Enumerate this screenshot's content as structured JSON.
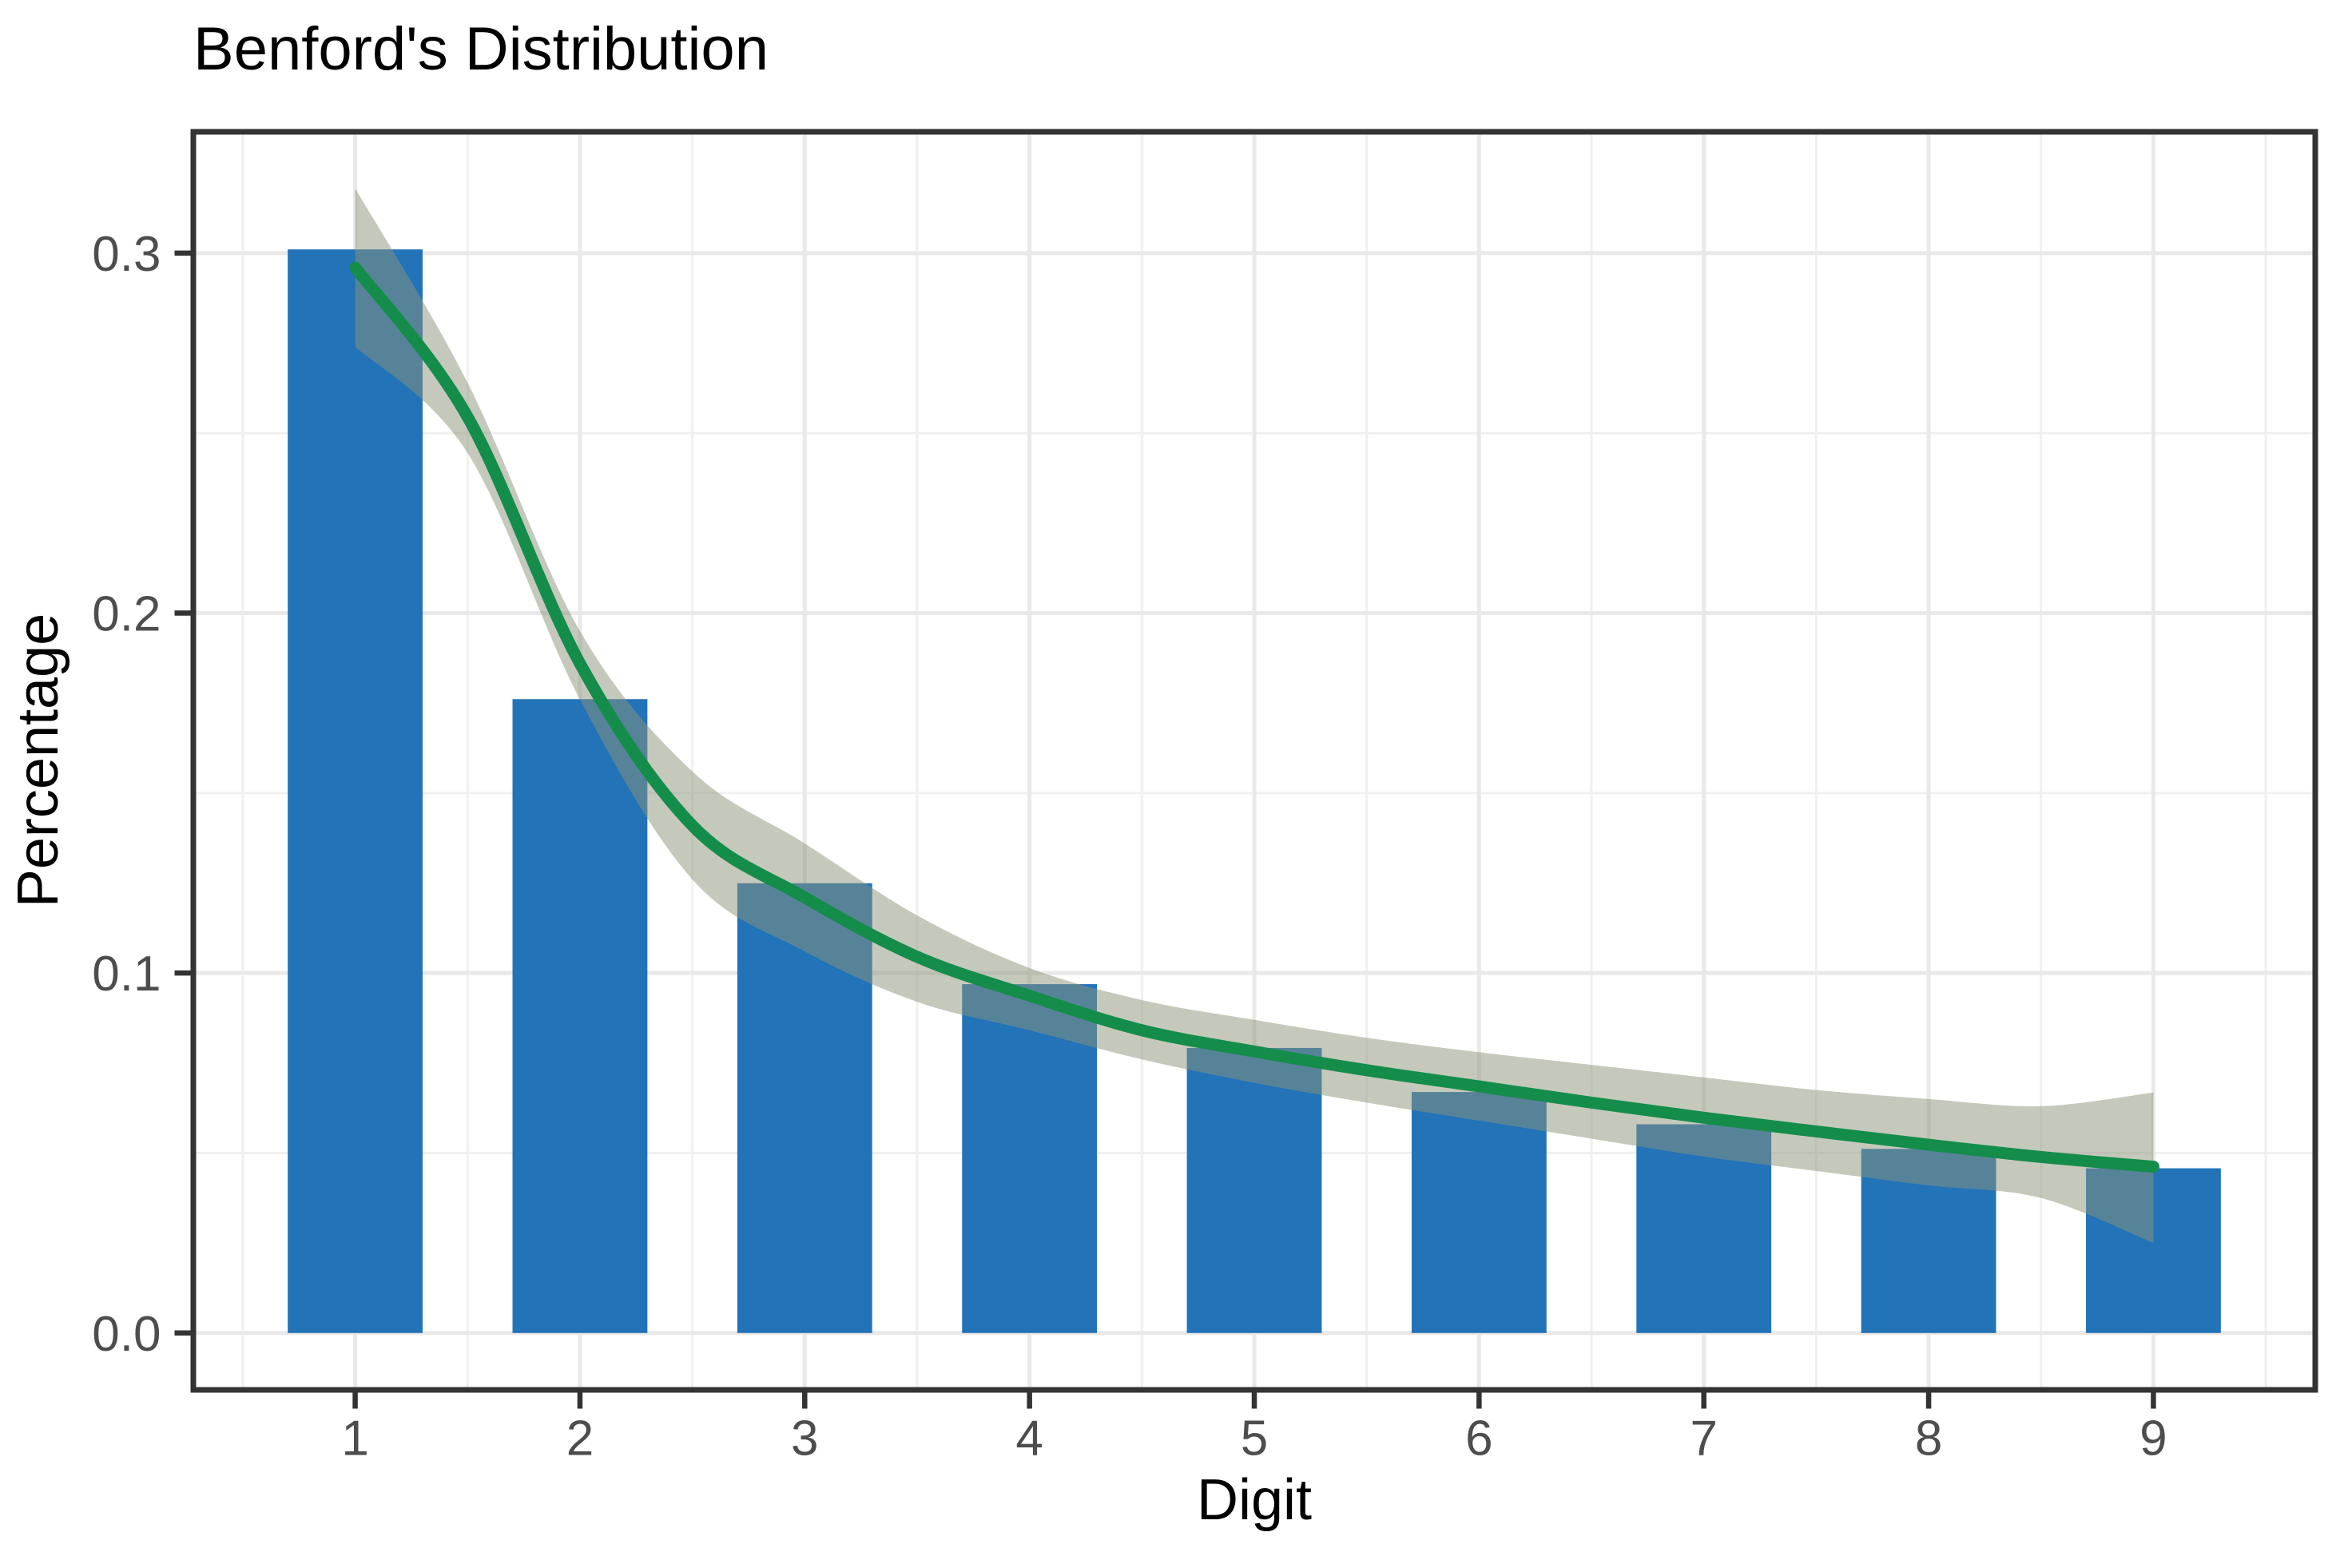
{
  "chart_data": {
    "type": "bar",
    "title": "Benford's Distribution",
    "xlabel": "Digit",
    "ylabel": "Percentage",
    "legend": "none",
    "grid": true,
    "categories": [
      "1",
      "2",
      "3",
      "4",
      "5",
      "6",
      "7",
      "8",
      "9"
    ],
    "bar_values": [
      0.30103,
      0.17609,
      0.12494,
      0.09691,
      0.07918,
      0.06695,
      0.05799,
      0.05115,
      0.04576
    ],
    "bar_width_units": 0.6,
    "series": [
      {
        "name": "benford-percentage-bars",
        "type": "bar",
        "values": [
          0.30103,
          0.17609,
          0.12494,
          0.09691,
          0.07918,
          0.06695,
          0.05799,
          0.05115,
          0.04576
        ]
      },
      {
        "name": "loess-smooth-line",
        "type": "line",
        "x": [
          1,
          1.5,
          2,
          2.5,
          3,
          3.5,
          4,
          4.5,
          5,
          5.5,
          6,
          6.5,
          7,
          7.5,
          8,
          8.5,
          9
        ],
        "y": [
          0.296,
          0.2545,
          0.186,
          0.141,
          0.121,
          0.1045,
          0.0937,
          0.0841,
          0.0782,
          0.073,
          0.0685,
          0.064,
          0.0598,
          0.056,
          0.0523,
          0.0489,
          0.0462
        ]
      }
    ],
    "confidence_band": {
      "x": [
        1,
        1.5,
        2,
        2.5,
        3,
        3.5,
        4,
        4.5,
        5,
        5.5,
        6,
        6.5,
        7,
        7.5,
        8,
        8.5,
        9
      ],
      "upper": [
        0.318,
        0.264,
        0.195,
        0.156,
        0.136,
        0.116,
        0.1014,
        0.0925,
        0.087,
        0.082,
        0.078,
        0.0745,
        0.071,
        0.0675,
        0.065,
        0.063,
        0.0668
      ],
      "lower": [
        0.274,
        0.2445,
        0.176,
        0.126,
        0.106,
        0.092,
        0.0841,
        0.076,
        0.0695,
        0.064,
        0.059,
        0.054,
        0.049,
        0.045,
        0.041,
        0.0375,
        0.025
      ]
    },
    "x_axis": {
      "range": [
        0.28,
        9.72
      ],
      "ticks": [
        1,
        2,
        3,
        4,
        5,
        6,
        7,
        8,
        9
      ],
      "tick_labels": [
        "1",
        "2",
        "3",
        "4",
        "5",
        "6",
        "7",
        "8",
        "9"
      ],
      "minor_gridlines": [
        0.5,
        1.5,
        2.5,
        3.5,
        4.5,
        5.5,
        6.5,
        7.5,
        8.5,
        9.5
      ]
    },
    "y_axis": {
      "range": [
        -0.0158,
        0.3337
      ],
      "ticks": [
        0,
        0.1,
        0.2,
        0.3
      ],
      "tick_labels": [
        "0.0",
        "0.1",
        "0.2",
        "0.3"
      ],
      "minor_gridlines": [
        0.05,
        0.15,
        0.25
      ]
    },
    "colors": {
      "bar_fill": "#2273b8",
      "smooth_line": "#148d4b",
      "band_fill": "#8b947a",
      "band_opacity": 0.5,
      "grid_major": "#e9e9e9",
      "grid_minor": "#f0f0f0",
      "panel_border": "#333333",
      "tick_mark": "#333333",
      "tick_label": "#4d4d4d",
      "title_text": "#000000"
    }
  }
}
